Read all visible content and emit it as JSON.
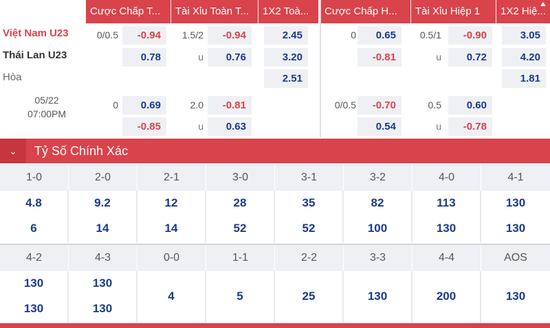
{
  "header": {
    "cols": [
      "Cược Chấp T...",
      "Tài Xỉu Toàn T...",
      "1X2 Toà...",
      "Cược Chấp H...",
      "Tài Xỉu Hiệp 1",
      "1X2 Hiệ..."
    ]
  },
  "match": {
    "home": "Việt Nam U23",
    "away": "Thái Lan U23",
    "draw": "Hòa",
    "date": "05/22",
    "time": "07:00PM",
    "lines": [
      {
        "ft_hcap_line": "0/0.5",
        "ft_hcap_home": "-0.94",
        "ft_hcap_away": "0.78",
        "ft_ou_line": "1.5/2",
        "ft_ou_over": "-0.94",
        "ft_ou_u": "u",
        "ft_ou_under": "0.76",
        "ft_1x2_home": "2.45",
        "ft_1x2_away": "3.20",
        "ft_1x2_draw": "2.51",
        "h1_hcap_line": "0",
        "h1_hcap_home": "0.65",
        "h1_hcap_away": "-0.81",
        "h1_ou_line": "0.5/1",
        "h1_ou_over": "-0.90",
        "h1_ou_u": "u",
        "h1_ou_under": "0.72",
        "h1_1x2_home": "3.05",
        "h1_1x2_away": "4.20",
        "h1_1x2_draw": "1.81"
      },
      {
        "ft_hcap_line": "0",
        "ft_hcap_home": "0.69",
        "ft_hcap_away": "-0.85",
        "ft_ou_line": "2.0",
        "ft_ou_over": "-0.81",
        "ft_ou_u": "u",
        "ft_ou_under": "0.63",
        "h1_hcap_line": "0/0.5",
        "h1_hcap_home": "-0.70",
        "h1_hcap_away": "0.54",
        "h1_ou_line": "0.5",
        "h1_ou_over": "0.60",
        "h1_ou_u": "u",
        "h1_ou_under": "-0.78"
      }
    ]
  },
  "section": {
    "title": "Tỷ Số Chính Xác",
    "icon": "chevron-down-icon"
  },
  "scores_row1": [
    {
      "score": "1-0",
      "home": "4.8",
      "away": "6"
    },
    {
      "score": "2-0",
      "home": "9.2",
      "away": "14"
    },
    {
      "score": "2-1",
      "home": "12",
      "away": "14"
    },
    {
      "score": "3-0",
      "home": "28",
      "away": "52"
    },
    {
      "score": "3-1",
      "home": "35",
      "away": "52"
    },
    {
      "score": "3-2",
      "home": "82",
      "away": "100"
    },
    {
      "score": "4-0",
      "home": "113",
      "away": "130"
    },
    {
      "score": "4-1",
      "home": "130",
      "away": "130"
    }
  ],
  "scores_row2": [
    {
      "score": "4-2",
      "home": "130",
      "away": "130"
    },
    {
      "score": "4-3",
      "home": "130",
      "away": "130"
    },
    {
      "score": "0-0",
      "single": "4"
    },
    {
      "score": "1-1",
      "single": "5"
    },
    {
      "score": "2-2",
      "single": "25"
    },
    {
      "score": "3-3",
      "single": "130"
    },
    {
      "score": "4-4",
      "single": "200"
    },
    {
      "score": "AOS",
      "single": "130"
    }
  ],
  "colors": {
    "accent": "#d9434c",
    "odd_bg": "#eef0f4",
    "positive": "#1b3a8c",
    "negative": "#d9434c"
  }
}
